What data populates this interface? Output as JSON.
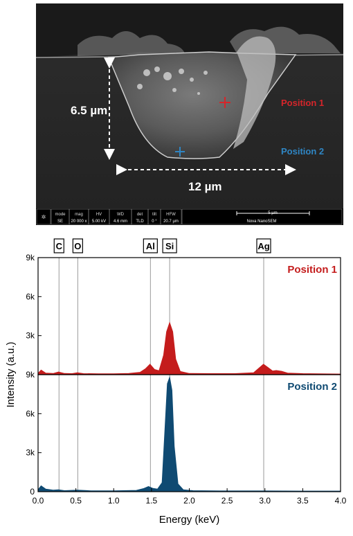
{
  "sem_image": {
    "depth_label": "6.5 µm",
    "width_label": "12 µm",
    "position1_label": "Position 1",
    "position2_label": "Position 2",
    "position1_color": "#d6252a",
    "position2_color": "#2f86c4",
    "info_bar": {
      "headers": [
        "mode",
        "mag",
        "HV",
        "WD",
        "det",
        "tilt",
        "HFW"
      ],
      "values": [
        "SE",
        "20 000 x",
        "5.00 kV",
        "4.6 mm",
        "TLD",
        "0 °",
        "20.7 µm"
      ],
      "scale_label": "5 µm",
      "instrument": "Nova NanoSEM"
    }
  },
  "chart_data": [
    {
      "type": "area",
      "name": "Position 1",
      "panel_label": "Position 1",
      "color": "#c41c1c",
      "x": [
        0.0,
        0.04,
        0.1,
        0.2,
        0.27,
        0.35,
        0.45,
        0.52,
        0.6,
        0.8,
        1.0,
        1.2,
        1.35,
        1.42,
        1.48,
        1.54,
        1.6,
        1.66,
        1.7,
        1.74,
        1.78,
        1.82,
        1.88,
        2.0,
        2.3,
        2.6,
        2.85,
        2.93,
        2.98,
        3.04,
        3.1,
        3.15,
        3.22,
        3.3,
        3.5,
        3.8,
        4.0
      ],
      "y": [
        100,
        350,
        120,
        90,
        200,
        90,
        80,
        150,
        80,
        70,
        70,
        90,
        180,
        450,
        800,
        400,
        300,
        1500,
        3300,
        4000,
        3300,
        1200,
        250,
        90,
        80,
        80,
        150,
        550,
        800,
        550,
        280,
        320,
        260,
        120,
        80,
        60,
        50
      ],
      "ylim": [
        0,
        9000
      ],
      "yticks": [
        "0",
        "3k",
        "6k",
        "9k"
      ]
    },
    {
      "type": "area",
      "name": "Position 2",
      "panel_label": "Position 2",
      "color": "#0f4a72",
      "x": [
        0.0,
        0.04,
        0.1,
        0.2,
        0.27,
        0.35,
        0.52,
        0.7,
        1.0,
        1.3,
        1.4,
        1.46,
        1.52,
        1.58,
        1.64,
        1.68,
        1.71,
        1.74,
        1.77,
        1.8,
        1.85,
        1.92,
        2.05,
        2.4,
        3.0,
        3.5,
        4.0
      ],
      "y": [
        150,
        450,
        200,
        120,
        150,
        80,
        120,
        70,
        70,
        100,
        250,
        400,
        250,
        200,
        700,
        5000,
        8300,
        8800,
        7800,
        3500,
        600,
        150,
        80,
        60,
        60,
        50,
        50
      ],
      "ylim": [
        0,
        9000
      ],
      "yticks": [
        "0",
        "3k",
        "6k",
        "9k"
      ]
    }
  ],
  "axes": {
    "xlabel": "Energy (keV)",
    "ylabel": "Intensity (a.u.)",
    "xlim": [
      0,
      4.0
    ],
    "xticks": [
      "0.0",
      "0.5",
      "1.0",
      "1.5",
      "2.0",
      "2.5",
      "3.0",
      "3.5",
      "4.0"
    ],
    "grid": false
  },
  "elements": [
    {
      "symbol": "C",
      "energy": 0.277
    },
    {
      "symbol": "O",
      "energy": 0.525
    },
    {
      "symbol": "Al",
      "energy": 1.486
    },
    {
      "symbol": "Si",
      "energy": 1.74
    },
    {
      "symbol": "Ag",
      "energy": 2.984
    }
  ]
}
